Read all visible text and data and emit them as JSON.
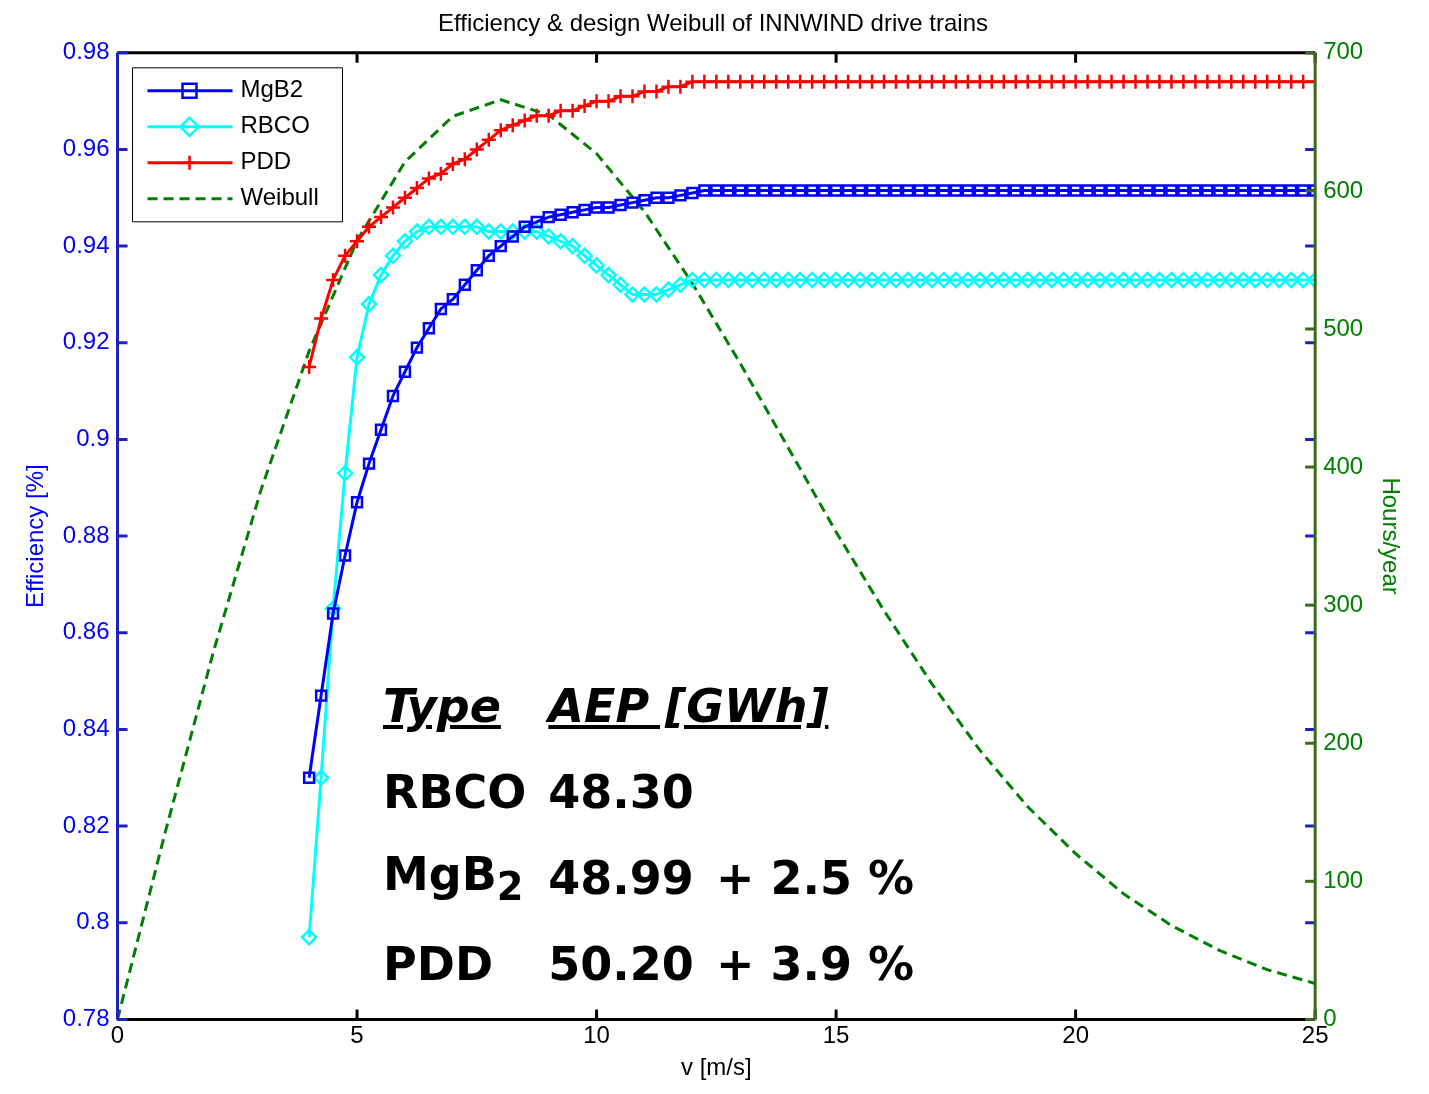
{
  "chart_data": {
    "type": "line",
    "title": "Efficiency & design Weibull of INNWIND drive trains",
    "xlabel": "v [m/s]",
    "ylabel": "Efficiency [%]",
    "y2label": "Hours/year",
    "x": [
      4,
      4.25,
      4.5,
      4.75,
      5,
      5.25,
      5.5,
      5.75,
      6,
      6.25,
      6.5,
      6.75,
      7,
      7.25,
      7.5,
      7.75,
      8,
      8.25,
      8.5,
      8.75,
      9,
      9.25,
      9.5,
      9.75,
      10,
      10.25,
      10.5,
      10.75,
      11,
      11.25,
      11.5,
      11.75,
      12,
      12.25,
      12.5,
      12.75,
      13,
      13.25,
      13.5,
      13.75,
      14,
      14.25,
      14.5,
      14.75,
      15,
      15.25,
      15.5,
      15.75,
      16,
      16.25,
      16.5,
      16.75,
      17,
      17.25,
      17.5,
      17.75,
      18,
      18.25,
      18.5,
      18.75,
      19,
      19.25,
      19.5,
      19.75,
      20,
      20.25,
      20.5,
      20.75,
      21,
      21.25,
      21.5,
      21.75,
      22,
      22.25,
      22.5,
      22.75,
      23,
      23.25,
      23.5,
      23.75,
      24,
      24.25,
      24.5,
      24.75,
      25
    ],
    "series": [
      {
        "name": "MgB2",
        "color": "#0000ff",
        "marker": "square",
        "values": [
          0.83,
          0.847,
          0.864,
          0.876,
          0.887,
          0.895,
          0.902,
          0.909,
          0.914,
          0.919,
          0.923,
          0.927,
          0.929,
          0.932,
          0.935,
          0.938,
          0.94,
          0.942,
          0.944,
          0.945,
          0.946,
          0.9465,
          0.947,
          0.9475,
          0.948,
          0.948,
          0.9485,
          0.949,
          0.9495,
          0.95,
          0.95,
          0.9505,
          0.951,
          0.9515,
          0.9515,
          0.9515,
          0.9515,
          0.9515,
          0.9515,
          0.9515,
          0.9515,
          0.9515,
          0.9515,
          0.9515,
          0.9515,
          0.9515,
          0.9515,
          0.9515,
          0.9515,
          0.9515,
          0.9515,
          0.9515,
          0.9515,
          0.9515,
          0.9515,
          0.9515,
          0.9515,
          0.9515,
          0.9515,
          0.9515,
          0.9515,
          0.9515,
          0.9515,
          0.9515,
          0.9515,
          0.9515,
          0.9515,
          0.9515,
          0.9515,
          0.9515,
          0.9515,
          0.9515,
          0.9515,
          0.9515,
          0.9515,
          0.9515,
          0.9515,
          0.9515,
          0.9515,
          0.9515,
          0.9515,
          0.9515,
          0.9515,
          0.9515,
          0.9515
        ]
      },
      {
        "name": "RBCO",
        "color": "#00ffff",
        "marker": "diamond",
        "values": [
          0.797,
          0.83,
          0.865,
          0.893,
          0.917,
          0.928,
          0.934,
          0.938,
          0.941,
          0.943,
          0.944,
          0.944,
          0.944,
          0.944,
          0.944,
          0.943,
          0.943,
          0.943,
          0.943,
          0.943,
          0.942,
          0.941,
          0.94,
          0.938,
          0.936,
          0.934,
          0.932,
          0.93,
          0.93,
          0.93,
          0.931,
          0.932,
          0.933,
          0.933,
          0.933,
          0.933,
          0.933,
          0.933,
          0.933,
          0.933,
          0.933,
          0.933,
          0.933,
          0.933,
          0.933,
          0.933,
          0.933,
          0.933,
          0.933,
          0.933,
          0.933,
          0.933,
          0.933,
          0.933,
          0.933,
          0.933,
          0.933,
          0.933,
          0.933,
          0.933,
          0.933,
          0.933,
          0.933,
          0.933,
          0.933,
          0.933,
          0.933,
          0.933,
          0.933,
          0.933,
          0.933,
          0.933,
          0.933,
          0.933,
          0.933,
          0.933,
          0.933,
          0.933,
          0.933,
          0.933,
          0.933,
          0.933,
          0.933,
          0.933,
          0.933
        ]
      },
      {
        "name": "PDD",
        "color": "#ff0000",
        "marker": "cross",
        "values": [
          0.915,
          0.925,
          0.933,
          0.938,
          0.941,
          0.944,
          0.946,
          0.948,
          0.95,
          0.952,
          0.954,
          0.955,
          0.957,
          0.958,
          0.96,
          0.962,
          0.964,
          0.965,
          0.966,
          0.967,
          0.967,
          0.968,
          0.968,
          0.969,
          0.97,
          0.97,
          0.971,
          0.971,
          0.972,
          0.972,
          0.973,
          0.973,
          0.974,
          0.974,
          0.974,
          0.974,
          0.974,
          0.974,
          0.974,
          0.974,
          0.974,
          0.974,
          0.974,
          0.974,
          0.974,
          0.974,
          0.974,
          0.974,
          0.974,
          0.974,
          0.974,
          0.974,
          0.974,
          0.974,
          0.974,
          0.974,
          0.974,
          0.974,
          0.974,
          0.974,
          0.974,
          0.974,
          0.974,
          0.974,
          0.974,
          0.974,
          0.974,
          0.974,
          0.974,
          0.974,
          0.974,
          0.974,
          0.974,
          0.974,
          0.974,
          0.974,
          0.974,
          0.974,
          0.974,
          0.974,
          0.974,
          0.974,
          0.974,
          0.974,
          0.974
        ]
      },
      {
        "name": "Weibull",
        "color": "#008000",
        "marker": "none",
        "line_style": "dashed",
        "axis": "y2",
        "x": [
          0,
          1,
          2,
          3,
          4,
          5,
          6,
          7,
          8,
          9,
          10,
          11,
          12,
          13,
          14,
          15,
          16,
          17,
          18,
          19,
          20,
          21,
          22,
          23,
          24,
          25
        ],
        "values": [
          0,
          136,
          266,
          384,
          484,
          564,
          621,
          654,
          666,
          655,
          627,
          585,
          533,
          475,
          414,
          353,
          296,
          243,
          195,
          154,
          120,
          91,
          68,
          50,
          36,
          26
        ]
      }
    ],
    "xlim": [
      0,
      25
    ],
    "xticks": [
      0,
      5,
      10,
      15,
      20,
      25
    ],
    "ylim": [
      0.78,
      0.98
    ],
    "yticks": [
      0.78,
      0.8,
      0.82,
      0.84,
      0.86,
      0.88,
      0.9,
      0.92,
      0.94,
      0.96,
      0.98
    ],
    "y2lim": [
      0,
      700
    ],
    "y2ticks": [
      0,
      100,
      200,
      300,
      400,
      500,
      600,
      700
    ],
    "legend": "top left",
    "grid": false,
    "annotations": [
      "Type",
      "AEP [GWh]",
      "RBCO",
      "48.30",
      "MgB$_{2}$",
      "48.99",
      "+ 2.5 %",
      "PDD",
      "50.20",
      "+ 3.9 %"
    ]
  }
}
